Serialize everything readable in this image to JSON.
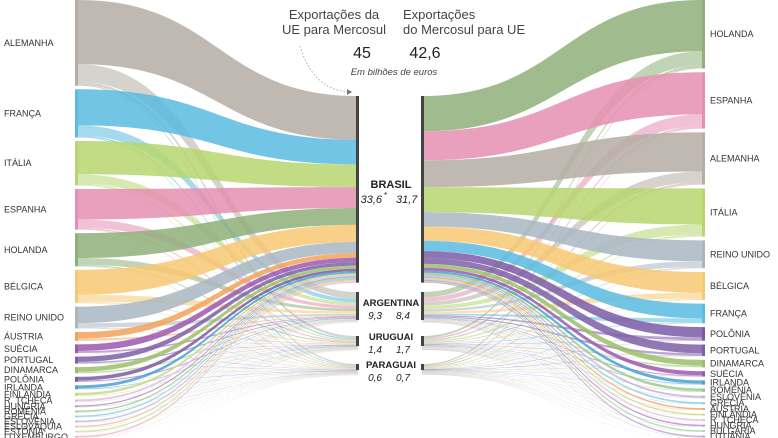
{
  "header": {
    "left_title_line1": "Exportações da",
    "left_title_line2": "UE para Mercosul",
    "right_title_line1": "Exportações",
    "right_title_line2": "do Mercosul para UE",
    "left_total": "45",
    "right_total": "42,6",
    "unit_note": "Em bilhões de euros"
  },
  "colors": {
    "ALEMANHA": "#b5ada3",
    "FRANÇA": "#5bbbe0",
    "ITÁLIA": "#b6d66f",
    "ESPANHA": "#e58fb2",
    "HOLANDA": "#8fb07a",
    "BÉLGICA": "#f7c873",
    "REINO UNIDO": "#a9b7c2",
    "ÁUSTRIA": "#f2a35a",
    "SUÉCIA": "#9c58b2",
    "PORTUGAL": "#7e60a8",
    "DINAMARCA": "#9bc06a",
    "POLÔNIA": "#7c5aa6",
    "IRLANDA": "#4aa0d0",
    "FINLÂNDIA": "#c9d98a",
    "R. TCHECA": "#e0c0dc",
    "HUNGRIA": "#b58ec5",
    "ROMÊNIA": "#9fc98a",
    "GRÉCIA": "#8fd0e0",
    "ESLOVÊNIA": "#c7b0d8",
    "ESLOVÁQUIA": "#e5c8a0",
    "ESTÔNIA": "#cde3a0",
    "LUXEMBURGO": "#f0b0c8",
    "BULGÁRIA": "#a8d8a0",
    "LITUÂNIA": "#c0a0d0"
  },
  "left_countries": [
    {
      "name": "ALEMANHA",
      "share": 0.23
    },
    {
      "name": "FRANÇA",
      "share": 0.13
    },
    {
      "name": "ITÁLIA",
      "share": 0.12
    },
    {
      "name": "ESPANHA",
      "share": 0.11
    },
    {
      "name": "HOLANDA",
      "share": 0.09
    },
    {
      "name": "BÉLGICA",
      "share": 0.09
    },
    {
      "name": "REINO UNIDO",
      "share": 0.06
    },
    {
      "name": "ÁUSTRIA",
      "share": 0.025
    },
    {
      "name": "SUÉCIA",
      "share": 0.025
    },
    {
      "name": "PORTUGAL",
      "share": 0.02
    },
    {
      "name": "DINAMARCA",
      "share": 0.018
    },
    {
      "name": "POLÔNIA",
      "share": 0.015
    },
    {
      "name": "IRLANDA",
      "share": 0.012
    },
    {
      "name": "FINLÂNDIA",
      "share": 0.01
    },
    {
      "name": "R. TCHECA",
      "share": 0.008
    },
    {
      "name": "HUNGRIA",
      "share": 0.006
    },
    {
      "name": "ROMÊNIA",
      "share": 0.005
    },
    {
      "name": "GRÉCIA",
      "share": 0.004
    },
    {
      "name": "ESLOVÊNIA",
      "share": 0.003
    },
    {
      "name": "ESLOVÁQUIA",
      "share": 0.003
    },
    {
      "name": "ESTÔNIA",
      "share": 0.002
    },
    {
      "name": "LUXEMBURGO",
      "share": 0.002
    }
  ],
  "right_countries": [
    {
      "name": "HOLANDA",
      "share": 0.17
    },
    {
      "name": "ESPANHA",
      "share": 0.14
    },
    {
      "name": "ALEMANHA",
      "share": 0.13
    },
    {
      "name": "ITÁLIA",
      "share": 0.12
    },
    {
      "name": "REINO UNIDO",
      "share": 0.07
    },
    {
      "name": "BÉLGICA",
      "share": 0.07
    },
    {
      "name": "FRANÇA",
      "share": 0.05
    },
    {
      "name": "POLÔNIA",
      "share": 0.035
    },
    {
      "name": "PORTUGAL",
      "share": 0.03
    },
    {
      "name": "DINAMARCA",
      "share": 0.02
    },
    {
      "name": "SUÉCIA",
      "share": 0.015
    },
    {
      "name": "IRLANDA",
      "share": 0.012
    },
    {
      "name": "ROMÊNIA",
      "share": 0.01
    },
    {
      "name": "ESLOVÊNIA",
      "share": 0.008
    },
    {
      "name": "GRÉCIA",
      "share": 0.007
    },
    {
      "name": "ÁUSTRIA",
      "share": 0.006
    },
    {
      "name": "FINLÂNDIA",
      "share": 0.005
    },
    {
      "name": "R. TCHECA",
      "share": 0.004
    },
    {
      "name": "HUNGRIA",
      "share": 0.003
    },
    {
      "name": "BULGÁRIA",
      "share": 0.003
    },
    {
      "name": "LITUÂNIA",
      "share": 0.002
    }
  ],
  "mercosul": [
    {
      "name": "BRASIL",
      "in": "33,6",
      "in_mark": "*",
      "out": "31,7",
      "in_value": 33.6,
      "out_value": 31.7
    },
    {
      "name": "ARGENTINA",
      "in": "9,3",
      "in_mark": "*",
      "out": "8,4",
      "in_value": 9.3,
      "out_value": 8.4
    },
    {
      "name": "URUGUAI",
      "in": "1,4",
      "in_mark": "",
      "out": "1,7",
      "in_value": 1.4,
      "out_value": 1.7
    },
    {
      "name": "PARAGUAI",
      "in": "0,6",
      "in_mark": "",
      "out": "0,7",
      "in_value": 0.6,
      "out_value": 0.7
    }
  ]
}
